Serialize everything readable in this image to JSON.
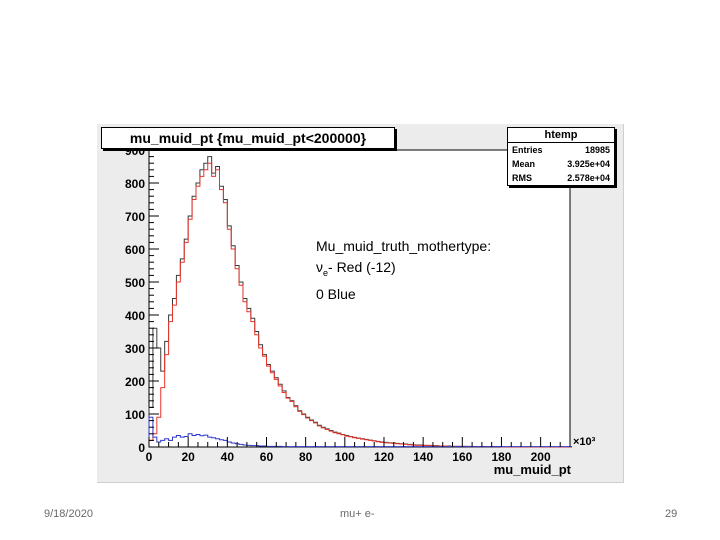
{
  "chart_data": {
    "type": "histogram",
    "title": "mu_muid_pt {mu_muid_pt<200000}",
    "xlabel": "mu_muid_pt",
    "x_multiplier": "×10³",
    "xlim": [
      0,
      215
    ],
    "ylim": [
      0,
      900
    ],
    "x_ticks": [
      0,
      20,
      40,
      60,
      80,
      100,
      120,
      140,
      160,
      180,
      200
    ],
    "y_ticks": [
      0,
      100,
      200,
      300,
      400,
      500,
      600,
      700,
      800,
      900
    ],
    "bin_width": 2,
    "series": [
      {
        "color": "#3a3a3a",
        "values": [
          120,
          360,
          300,
          230,
          320,
          400,
          450,
          520,
          570,
          630,
          700,
          760,
          800,
          840,
          860,
          880,
          830,
          850,
          790,
          750,
          670,
          610,
          550,
          500,
          450,
          420,
          390,
          350,
          310,
          280,
          250,
          230,
          210,
          190,
          170,
          150,
          140,
          125,
          110,
          100,
          90,
          82,
          75,
          66,
          60,
          55,
          50,
          45,
          42,
          38,
          35,
          32,
          29,
          27,
          25,
          23,
          21,
          19,
          17,
          15,
          14,
          13,
          12,
          11,
          10,
          9,
          8,
          7,
          6,
          6,
          5,
          5,
          4,
          4,
          3,
          3,
          3,
          2,
          2,
          2,
          2,
          2,
          1,
          1,
          1,
          1,
          1,
          1,
          1,
          1,
          0,
          0,
          0,
          0,
          0,
          0,
          0,
          0,
          0,
          0,
          0,
          0,
          0,
          0,
          0,
          0,
          0,
          0
        ]
      },
      {
        "color": "#e8352b",
        "values": [
          20,
          40,
          90,
          180,
          280,
          380,
          430,
          500,
          560,
          620,
          690,
          750,
          790,
          820,
          840,
          860,
          820,
          840,
          780,
          740,
          660,
          600,
          540,
          490,
          440,
          410,
          380,
          340,
          300,
          275,
          245,
          225,
          205,
          185,
          165,
          148,
          138,
          122,
          108,
          98,
          88,
          80,
          73,
          64,
          58,
          53,
          48,
          43,
          40,
          37,
          33,
          31,
          28,
          26,
          24,
          22,
          20,
          18,
          16,
          14,
          13,
          12,
          11,
          10,
          9,
          8,
          7,
          6,
          5,
          5,
          5,
          4,
          4,
          3,
          3,
          3,
          2,
          2,
          2,
          2,
          2,
          1,
          1,
          1,
          1,
          1,
          1,
          1,
          1,
          1,
          0,
          0,
          0,
          0,
          0,
          0,
          0,
          0,
          0,
          0,
          0,
          0,
          0,
          0,
          0,
          0,
          0,
          0
        ]
      },
      {
        "color": "#2c38c8",
        "values": [
          90,
          30,
          15,
          20,
          25,
          20,
          30,
          35,
          30,
          32,
          40,
          35,
          38,
          34,
          36,
          30,
          28,
          25,
          22,
          20,
          15,
          12,
          10,
          8,
          6,
          5,
          4,
          4,
          3,
          3,
          2,
          2,
          2,
          2,
          1,
          1,
          1,
          1,
          1,
          1,
          1,
          1,
          1,
          1,
          1,
          1,
          1,
          1,
          1,
          1,
          1,
          1,
          1,
          1,
          1,
          1,
          1,
          1,
          1,
          1,
          1,
          1,
          1,
          1,
          1,
          1,
          1,
          1,
          1,
          1,
          1,
          1,
          1,
          1,
          1,
          1,
          1,
          1,
          1,
          1,
          1,
          1,
          1,
          1,
          1,
          1,
          1,
          1,
          1,
          1,
          1,
          1,
          1,
          1,
          1,
          1,
          1,
          1,
          1,
          1,
          1,
          1,
          1,
          1,
          1,
          1,
          1,
          1
        ]
      }
    ],
    "stats": {
      "title": "htemp",
      "rows": [
        {
          "label": "Entries",
          "value": "18985"
        },
        {
          "label": "Mean",
          "value": "3.925e+04"
        },
        {
          "label": "RMS",
          "value": "2.578e+04"
        }
      ]
    }
  },
  "annotation": {
    "line1": "Mu_muid_truth_mothertype:",
    "line2_nu": "ν",
    "line2_sub": "e",
    "line2_rest": "- Red (-12)",
    "line3": "0 Blue"
  },
  "footer": {
    "date": "9/18/2020",
    "center": "mu+ e-",
    "page": "29"
  }
}
